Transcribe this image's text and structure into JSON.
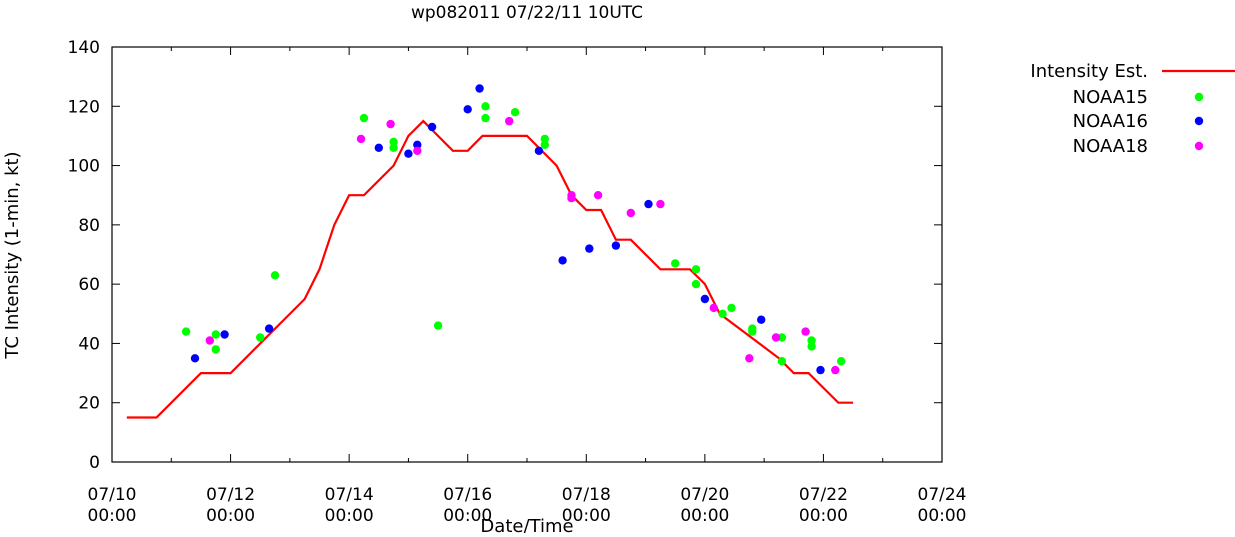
{
  "chart_data": {
    "type": "scatter",
    "title": "wp082011 07/22/11 10UTC",
    "xlabel": "Date/Time",
    "ylabel": "TC Intensity (1-min, kt)",
    "xlim": [
      0,
      14
    ],
    "ylim": [
      0,
      140
    ],
    "x_units": "days since 07/10 00:00",
    "x_ticks": [
      {
        "value": 0,
        "line1": "07/10",
        "line2": "00:00"
      },
      {
        "value": 2,
        "line1": "07/12",
        "line2": "00:00"
      },
      {
        "value": 4,
        "line1": "07/14",
        "line2": "00:00"
      },
      {
        "value": 6,
        "line1": "07/16",
        "line2": "00:00"
      },
      {
        "value": 8,
        "line1": "07/18",
        "line2": "00:00"
      },
      {
        "value": 10,
        "line1": "07/20",
        "line2": "00:00"
      },
      {
        "value": 12,
        "line1": "07/22",
        "line2": "00:00"
      },
      {
        "value": 14,
        "line1": "07/24",
        "line2": "00:00"
      }
    ],
    "y_ticks": [
      0,
      20,
      40,
      60,
      80,
      100,
      120,
      140
    ],
    "grid": false,
    "legend_position": "outside-top-right",
    "series": [
      {
        "name": "Intensity Est.",
        "kind": "line",
        "color": "#ff0000",
        "points": [
          [
            0.25,
            15
          ],
          [
            0.75,
            15
          ],
          [
            1.5,
            30
          ],
          [
            2.0,
            30
          ],
          [
            3.25,
            55
          ],
          [
            3.5,
            65
          ],
          [
            3.75,
            80
          ],
          [
            4.0,
            90
          ],
          [
            4.25,
            90
          ],
          [
            4.75,
            100
          ],
          [
            5.0,
            110
          ],
          [
            5.25,
            115
          ],
          [
            5.75,
            105
          ],
          [
            6.0,
            105
          ],
          [
            6.25,
            110
          ],
          [
            7.0,
            110
          ],
          [
            7.5,
            100
          ],
          [
            7.75,
            90
          ],
          [
            8.0,
            85
          ],
          [
            8.25,
            85
          ],
          [
            8.5,
            75
          ],
          [
            8.75,
            75
          ],
          [
            9.25,
            65
          ],
          [
            9.75,
            65
          ],
          [
            10.0,
            60
          ],
          [
            10.25,
            50
          ],
          [
            11.25,
            35
          ],
          [
            11.5,
            30
          ],
          [
            11.75,
            30
          ],
          [
            12.0,
            25
          ],
          [
            12.25,
            20
          ],
          [
            12.5,
            20
          ]
        ]
      },
      {
        "name": "NOAA15",
        "kind": "points",
        "color": "#00ff00",
        "points": [
          [
            1.25,
            44
          ],
          [
            1.75,
            43
          ],
          [
            1.75,
            38
          ],
          [
            2.5,
            42
          ],
          [
            2.75,
            63
          ],
          [
            4.25,
            116
          ],
          [
            4.75,
            108
          ],
          [
            4.75,
            106
          ],
          [
            5.5,
            46
          ],
          [
            6.3,
            120
          ],
          [
            6.3,
            116
          ],
          [
            6.8,
            118
          ],
          [
            7.3,
            109
          ],
          [
            7.3,
            107
          ],
          [
            9.5,
            67
          ],
          [
            9.85,
            65
          ],
          [
            9.85,
            60
          ],
          [
            10.3,
            50
          ],
          [
            10.45,
            52
          ],
          [
            10.8,
            45
          ],
          [
            10.8,
            44
          ],
          [
            11.3,
            42
          ],
          [
            11.3,
            34
          ],
          [
            11.8,
            41
          ],
          [
            11.8,
            39
          ],
          [
            12.3,
            34
          ]
        ]
      },
      {
        "name": "NOAA16",
        "kind": "points",
        "color": "#0000ff",
        "points": [
          [
            1.4,
            35
          ],
          [
            1.9,
            43
          ],
          [
            2.65,
            45
          ],
          [
            4.5,
            106
          ],
          [
            5.0,
            104
          ],
          [
            5.15,
            107
          ],
          [
            5.4,
            113
          ],
          [
            6.0,
            119
          ],
          [
            6.2,
            126
          ],
          [
            7.2,
            105
          ],
          [
            7.6,
            68
          ],
          [
            8.05,
            72
          ],
          [
            8.5,
            73
          ],
          [
            9.05,
            87
          ],
          [
            10.0,
            55
          ],
          [
            10.95,
            48
          ],
          [
            11.95,
            31
          ]
        ]
      },
      {
        "name": "NOAA18",
        "kind": "points",
        "color": "#ff00ff",
        "points": [
          [
            1.65,
            41
          ],
          [
            4.2,
            109
          ],
          [
            4.7,
            114
          ],
          [
            5.15,
            105
          ],
          [
            6.7,
            115
          ],
          [
            7.75,
            89
          ],
          [
            7.75,
            90
          ],
          [
            8.2,
            90
          ],
          [
            8.75,
            84
          ],
          [
            9.25,
            87
          ],
          [
            10.15,
            52
          ],
          [
            10.75,
            35
          ],
          [
            11.2,
            42
          ],
          [
            11.7,
            44
          ],
          [
            12.2,
            31
          ]
        ]
      }
    ]
  }
}
